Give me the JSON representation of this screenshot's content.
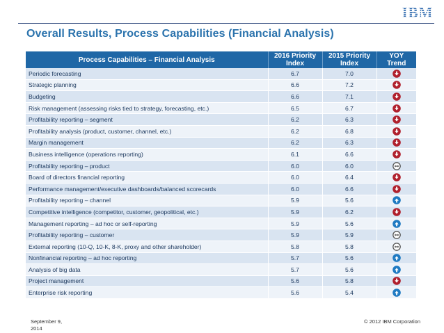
{
  "header": {
    "logo_text": "IBM"
  },
  "title": "Overall Results, Process Capabilities (Financial Analysis)",
  "table": {
    "columns": {
      "capability": "Process Capabilities – Financial Analysis",
      "p2016_line1": "2016 Priority",
      "p2016_line2": "Index",
      "p2015_line1": "2015 Priority",
      "p2015_line2": "Index",
      "yoy_line1": "YOY",
      "yoy_line2": "Trend"
    },
    "rows": [
      {
        "capability": "Periodic forecasting",
        "p2016": "6.7",
        "p2015": "7.0",
        "trend": "down"
      },
      {
        "capability": "Strategic planning",
        "p2016": "6.6",
        "p2015": "7.2",
        "trend": "down"
      },
      {
        "capability": "Budgeting",
        "p2016": "6.6",
        "p2015": "7.1",
        "trend": "down"
      },
      {
        "capability": "Risk management (assessing risks tied to strategy, forecasting, etc.)",
        "p2016": "6.5",
        "p2015": "6.7",
        "trend": "down"
      },
      {
        "capability": "Profitability reporting – segment",
        "p2016": "6.2",
        "p2015": "6.3",
        "trend": "down"
      },
      {
        "capability": "Profitability analysis (product, customer, channel, etc.)",
        "p2016": "6.2",
        "p2015": "6.8",
        "trend": "down"
      },
      {
        "capability": "Margin management",
        "p2016": "6.2",
        "p2015": "6.3",
        "trend": "down"
      },
      {
        "capability": "Business intelligence (operations reporting)",
        "p2016": "6.1",
        "p2015": "6.6",
        "trend": "down"
      },
      {
        "capability": "Profitability reporting – product",
        "p2016": "6.0",
        "p2015": "6.0",
        "trend": "flat"
      },
      {
        "capability": "Board of directors financial reporting",
        "p2016": "6.0",
        "p2015": "6.4",
        "trend": "down"
      },
      {
        "capability": "Performance management/executive dashboards/balanced scorecards",
        "p2016": "6.0",
        "p2015": "6.6",
        "trend": "down"
      },
      {
        "capability": "Profitability reporting – channel",
        "p2016": "5.9",
        "p2015": "5.6",
        "trend": "up"
      },
      {
        "capability": "Competitive intelligence (competitor, customer, geopolitical, etc.)",
        "p2016": "5.9",
        "p2015": "6.2",
        "trend": "down"
      },
      {
        "capability": "Management reporting – ad hoc or self-reporting",
        "p2016": "5.9",
        "p2015": "5.6",
        "trend": "up"
      },
      {
        "capability": "Profitability reporting – customer",
        "p2016": "5.9",
        "p2015": "5.9",
        "trend": "flat"
      },
      {
        "capability": "External reporting (10-Q, 10-K, 8-K, proxy and other shareholder)",
        "p2016": "5.8",
        "p2015": "5.8",
        "trend": "flat"
      },
      {
        "capability": "Nonfinancial reporting – ad hoc reporting",
        "p2016": "5.7",
        "p2015": "5.6",
        "trend": "up"
      },
      {
        "capability": "Analysis of big data",
        "p2016": "5.7",
        "p2015": "5.6",
        "trend": "up"
      },
      {
        "capability": "Project management",
        "p2016": "5.6",
        "p2015": "5.8",
        "trend": "down"
      },
      {
        "capability": "Enterprise risk reporting",
        "p2016": "5.6",
        "p2015": "5.4",
        "trend": "up"
      }
    ]
  },
  "colors": {
    "down": "#b0202d",
    "up": "#1f7ac2",
    "flat": "#555555",
    "header_bg": "#1f67a6"
  },
  "footer": {
    "date_line1": "September 9,",
    "date_line2": "2014",
    "copyright": "© 2012 IBM Corporation"
  }
}
